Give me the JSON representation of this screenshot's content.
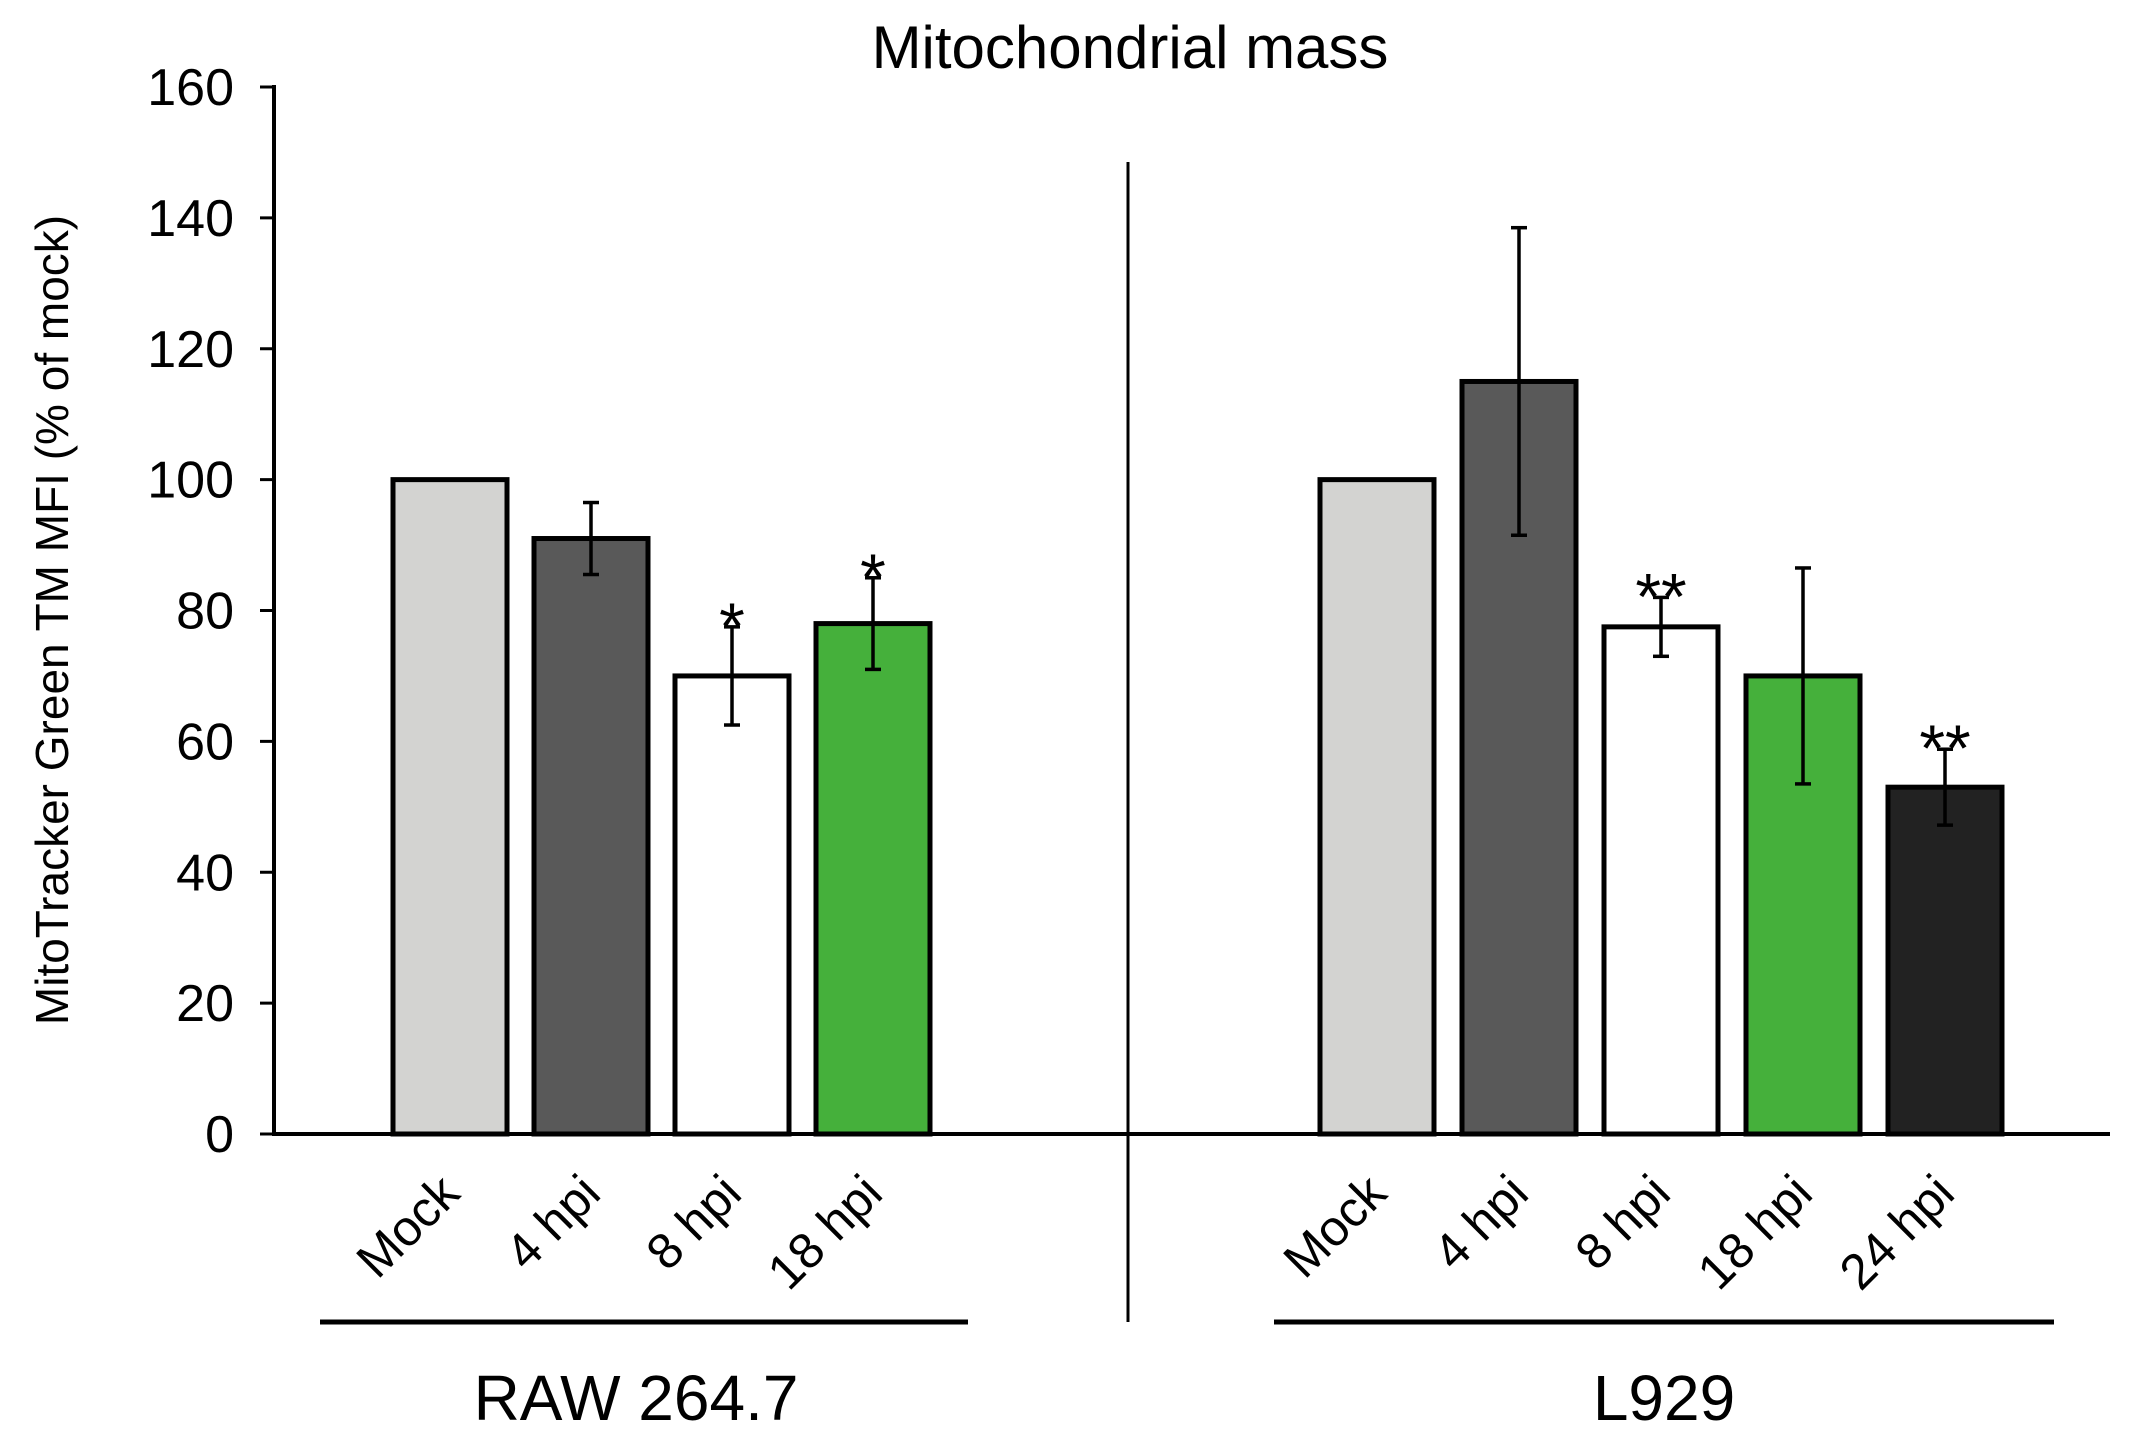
{
  "chart_data": {
    "type": "bar",
    "title": "Mitochondrial mass",
    "ylabel": "MitoTracker Green TM MFI (% of mock)",
    "xlabel": "",
    "ylim": [
      0,
      160
    ],
    "yticks": [
      0,
      20,
      40,
      60,
      80,
      100,
      120,
      140,
      160
    ],
    "grid": false,
    "legend": "none",
    "groups": [
      {
        "name": "RAW 264.7",
        "categories": [
          "Mock",
          "4 hpi",
          "8 hpi",
          "18 hpi"
        ],
        "values": [
          100,
          91,
          70,
          78
        ],
        "errors": [
          0,
          5.5,
          7.5,
          7
        ],
        "significance": [
          "",
          "",
          "*",
          "*"
        ],
        "colors": [
          "#d3d3d1",
          "#595959",
          "#ffffff",
          "#45b03b"
        ]
      },
      {
        "name": "L929",
        "categories": [
          "Mock",
          "4 hpi",
          "8 hpi",
          "18 hpi",
          "24 hpi"
        ],
        "values": [
          100,
          115,
          77.5,
          70,
          53
        ],
        "errors": [
          0,
          23.5,
          4.5,
          16.5,
          5.8
        ],
        "significance": [
          "",
          "",
          "**",
          "",
          "**"
        ],
        "colors": [
          "#d3d3d1",
          "#595959",
          "#ffffff",
          "#45b03b",
          "#222222"
        ]
      }
    ]
  }
}
